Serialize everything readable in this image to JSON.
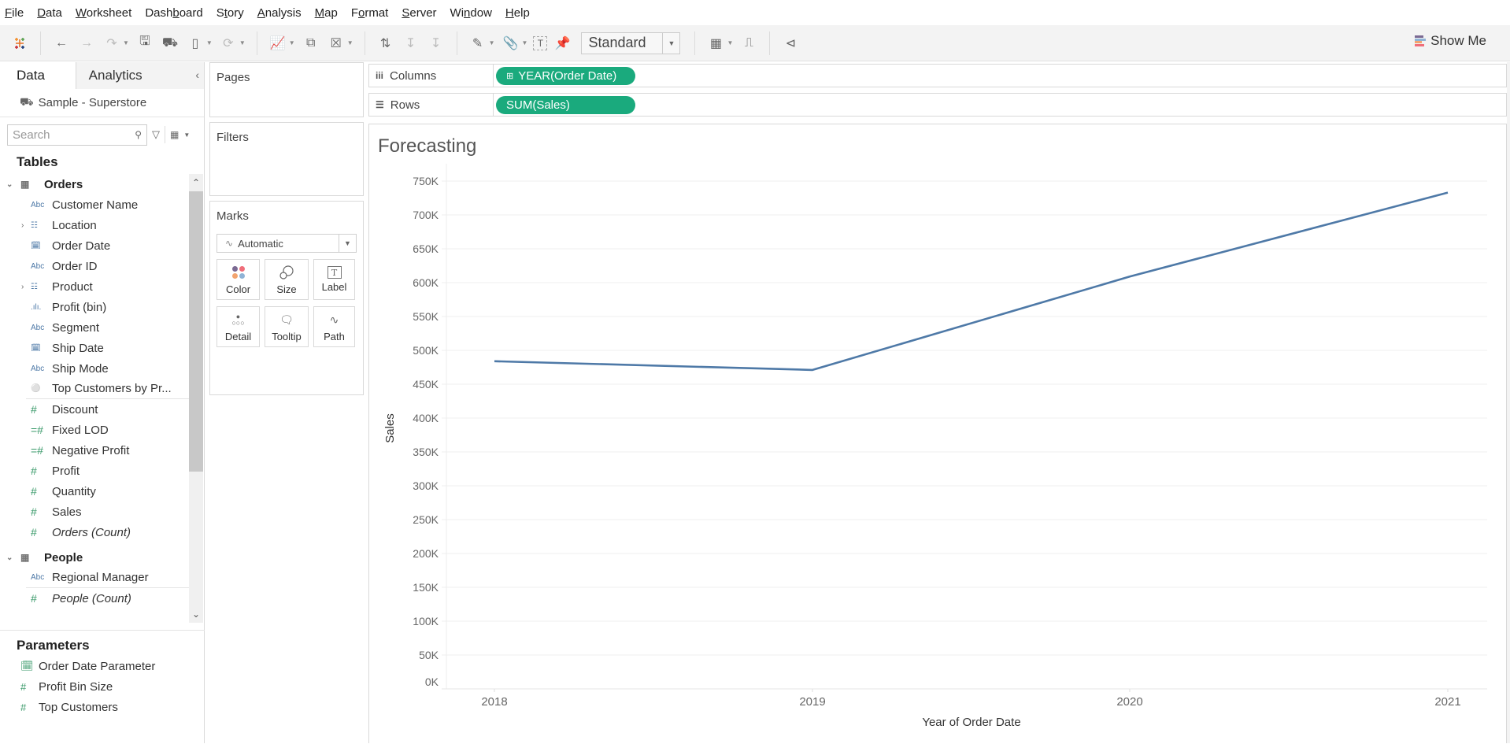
{
  "menu": [
    {
      "label": "File",
      "u": "F",
      "rest": "ile"
    },
    {
      "label": "Data",
      "u": "D",
      "rest": "ata"
    },
    {
      "label": "Worksheet",
      "u": "W",
      "rest": "orksheet"
    },
    {
      "label": "Dashboard",
      "pre": "Dash",
      "u": "b",
      "rest": "oard"
    },
    {
      "label": "Story",
      "pre": "S",
      "u": "t",
      "rest": "ory"
    },
    {
      "label": "Analysis",
      "u": "A",
      "rest": "nalysis"
    },
    {
      "label": "Map",
      "u": "M",
      "rest": "ap"
    },
    {
      "label": "Format",
      "pre": "F",
      "u": "o",
      "rest": "rmat"
    },
    {
      "label": "Server",
      "u": "S",
      "rest": "erver"
    },
    {
      "label": "Window",
      "pre": "Wi",
      "u": "n",
      "rest": "dow"
    },
    {
      "label": "Help",
      "u": "H",
      "rest": "elp"
    }
  ],
  "toolbar": {
    "fit_select": "Standard",
    "show_me": "Show Me",
    "show_me_colors": [
      "#7b6a93",
      "#8fb3d6",
      "#f2a46f",
      "#f06e7a"
    ]
  },
  "datapane": {
    "tab_data": "Data",
    "tab_analytics": "Analytics",
    "datasource": "Sample - Superstore",
    "search_placeholder": "Search",
    "tables_heading": "Tables",
    "orders_table": "Orders",
    "orders_fields": [
      {
        "label": "Customer Name",
        "type": "abc"
      },
      {
        "label": "Location",
        "type": "hier",
        "expandable": true
      },
      {
        "label": "Order Date",
        "type": "date"
      },
      {
        "label": "Order ID",
        "type": "abc"
      },
      {
        "label": "Product",
        "type": "hier",
        "expandable": true
      },
      {
        "label": "Profit (bin)",
        "type": "bin"
      },
      {
        "label": "Segment",
        "type": "abc"
      },
      {
        "label": "Ship Date",
        "type": "date"
      },
      {
        "label": "Ship Mode",
        "type": "abc"
      },
      {
        "label": "Top Customers by Pr...",
        "type": "set"
      }
    ],
    "orders_measures": [
      {
        "label": "Discount",
        "type": "num"
      },
      {
        "label": "Fixed LOD",
        "type": "calc"
      },
      {
        "label": "Negative Profit",
        "type": "calc"
      },
      {
        "label": "Profit",
        "type": "num"
      },
      {
        "label": "Quantity",
        "type": "num"
      },
      {
        "label": "Sales",
        "type": "num"
      },
      {
        "label": "Orders (Count)",
        "type": "num",
        "italic": true
      }
    ],
    "people_table": "People",
    "people_fields": [
      {
        "label": "Regional Manager",
        "type": "abc"
      },
      {
        "label": "People (Count)",
        "type": "num",
        "italic": true
      }
    ],
    "parameters_heading": "Parameters",
    "parameters": [
      {
        "label": "Order Date Parameter",
        "type": "date"
      },
      {
        "label": "Profit Bin Size",
        "type": "num"
      },
      {
        "label": "Top Customers",
        "type": "num"
      }
    ]
  },
  "cards": {
    "pages": "Pages",
    "filters": "Filters",
    "marks": "Marks",
    "mark_type": "Automatic",
    "mark_buttons": [
      "Color",
      "Size",
      "Label",
      "Detail",
      "Tooltip",
      "Path"
    ]
  },
  "shelves": {
    "columns_label": "Columns",
    "columns_pill": "YEAR(Order Date)",
    "rows_label": "Rows",
    "rows_pill": "SUM(Sales)",
    "pill_color": "#1aaa7d"
  },
  "chart_data": {
    "type": "line",
    "title": "Forecasting",
    "xlabel": "Year of Order Date",
    "ylabel": "Sales",
    "categories": [
      "2018",
      "2019",
      "2020",
      "2021"
    ],
    "series": [
      {
        "name": "SUM(Sales)",
        "values": [
          484000,
          471000,
          609000,
          733000
        ],
        "color": "#4e79a7"
      }
    ],
    "yticks": [
      "0K",
      "50K",
      "100K",
      "150K",
      "200K",
      "250K",
      "300K",
      "350K",
      "400K",
      "450K",
      "500K",
      "550K",
      "600K",
      "650K",
      "700K",
      "750K"
    ],
    "ylim": [
      0,
      760000
    ],
    "grid": true,
    "legend": "none"
  }
}
